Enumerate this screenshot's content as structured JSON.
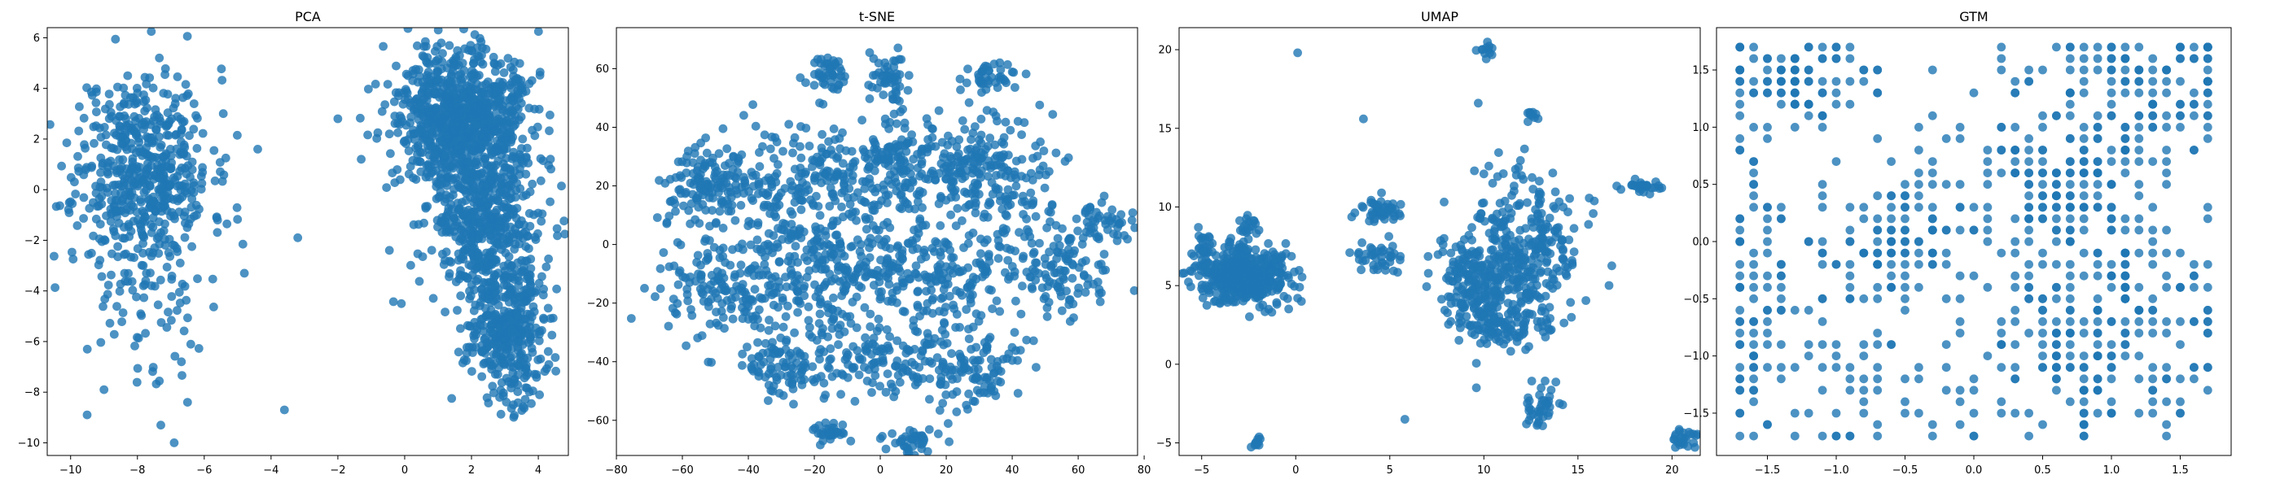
{
  "colors": {
    "marker": "#1f77b4",
    "background": "#ffffff",
    "axis": "#000000"
  },
  "chart_data": [
    {
      "type": "scatter",
      "title": "PCA",
      "xlim": [
        -10.7,
        4.9
      ],
      "ylim": [
        -10.5,
        6.4
      ],
      "xticks": [
        -10,
        -8,
        -6,
        -4,
        -2,
        0,
        2,
        4
      ],
      "yticks": [
        -10,
        -8,
        -6,
        -4,
        -2,
        0,
        2,
        4,
        6
      ],
      "clusters": [
        {
          "center": [
            -7.8,
            0.8
          ],
          "spread": [
            1.0,
            2.0
          ],
          "count": 550,
          "seed": 11
        },
        {
          "center": [
            -7.6,
            -4.5
          ],
          "spread": [
            1.3,
            2.0
          ],
          "count": 70,
          "seed": 12
        },
        {
          "center": [
            1.8,
            2.8
          ],
          "spread": [
            1.0,
            1.3
          ],
          "count": 900,
          "seed": 13
        },
        {
          "center": [
            2.4,
            -1.2
          ],
          "spread": [
            0.9,
            1.6
          ],
          "count": 500,
          "seed": 14
        },
        {
          "center": [
            3.1,
            -5.5
          ],
          "spread": [
            0.6,
            1.3
          ],
          "count": 380,
          "seed": 15
        }
      ],
      "points": [
        [
          -6.9,
          -10.0
        ],
        [
          -3.6,
          -8.7
        ],
        [
          -3.2,
          -1.9
        ],
        [
          -2.0,
          2.8
        ],
        [
          -1.3,
          1.2
        ],
        [
          0.1,
          4.5
        ],
        [
          -0.1,
          -4.5
        ],
        [
          -9.5,
          -6.3
        ],
        [
          -9.0,
          -7.9
        ],
        [
          -7.3,
          -9.3
        ],
        [
          -6.5,
          -8.4
        ],
        [
          -4.8,
          -3.3
        ],
        [
          -4.4,
          1.6
        ]
      ]
    },
    {
      "type": "scatter",
      "title": "t-SNE",
      "xlim": [
        -80,
        78
      ],
      "ylim": [
        -72,
        74
      ],
      "xticks": [
        -80,
        -60,
        -40,
        -20,
        0,
        20,
        40,
        60,
        80
      ],
      "yticks": [
        -60,
        -40,
        -20,
        0,
        20,
        40,
        60
      ],
      "clusters": [
        {
          "center": [
            -15,
            58
          ],
          "spread": [
            3,
            3
          ],
          "count": 45,
          "seed": 21
        },
        {
          "center": [
            2,
            57
          ],
          "spread": [
            3,
            4
          ],
          "count": 50,
          "seed": 22
        },
        {
          "center": [
            35,
            57
          ],
          "spread": [
            4,
            2
          ],
          "count": 40,
          "seed": 23
        },
        {
          "center": [
            -55,
            20
          ],
          "spread": [
            6,
            8
          ],
          "count": 120,
          "seed": 24
        },
        {
          "center": [
            -30,
            15
          ],
          "spread": [
            10,
            12
          ],
          "count": 200,
          "seed": 25
        },
        {
          "center": [
            0,
            25
          ],
          "spread": [
            10,
            10
          ],
          "count": 220,
          "seed": 26
        },
        {
          "center": [
            30,
            25
          ],
          "spread": [
            10,
            10
          ],
          "count": 220,
          "seed": 27
        },
        {
          "center": [
            -45,
            -15
          ],
          "spread": [
            10,
            8
          ],
          "count": 160,
          "seed": 28
        },
        {
          "center": [
            -15,
            -10
          ],
          "spread": [
            10,
            10
          ],
          "count": 180,
          "seed": 29
        },
        {
          "center": [
            20,
            -10
          ],
          "spread": [
            12,
            10
          ],
          "count": 200,
          "seed": 30
        },
        {
          "center": [
            55,
            -8
          ],
          "spread": [
            8,
            10
          ],
          "count": 120,
          "seed": 31
        },
        {
          "center": [
            -30,
            -40
          ],
          "spread": [
            8,
            6
          ],
          "count": 100,
          "seed": 32
        },
        {
          "center": [
            0,
            -40
          ],
          "spread": [
            10,
            6
          ],
          "count": 120,
          "seed": 33
        },
        {
          "center": [
            28,
            -42
          ],
          "spread": [
            8,
            8
          ],
          "count": 110,
          "seed": 34
        },
        {
          "center": [
            -15,
            -64
          ],
          "spread": [
            3,
            2
          ],
          "count": 35,
          "seed": 35
        },
        {
          "center": [
            10,
            -67
          ],
          "spread": [
            4,
            2
          ],
          "count": 40,
          "seed": 36
        },
        {
          "center": [
            68,
            7
          ],
          "spread": [
            4,
            3
          ],
          "count": 40,
          "seed": 37
        }
      ],
      "points": []
    },
    {
      "type": "scatter",
      "title": "UMAP",
      "xlim": [
        -6.2,
        21.5
      ],
      "ylim": [
        -5.8,
        21.4
      ],
      "xticks": [
        -5,
        0,
        5,
        10,
        15,
        20
      ],
      "yticks": [
        -5,
        0,
        5,
        10,
        15,
        20
      ],
      "clusters": [
        {
          "center": [
            -2.8,
            5.6
          ],
          "spread": [
            1.2,
            0.9
          ],
          "count": 500,
          "seed": 41
        },
        {
          "center": [
            -5.0,
            7.5
          ],
          "spread": [
            0.3,
            0.6
          ],
          "count": 25,
          "seed": 42
        },
        {
          "center": [
            -2.6,
            8.8
          ],
          "spread": [
            0.3,
            0.5
          ],
          "count": 20,
          "seed": 43
        },
        {
          "center": [
            4.5,
            9.7
          ],
          "spread": [
            0.6,
            0.5
          ],
          "count": 45,
          "seed": 44
        },
        {
          "center": [
            4.3,
            6.8
          ],
          "spread": [
            0.7,
            0.5
          ],
          "count": 40,
          "seed": 45
        },
        {
          "center": [
            9.5,
            5.0
          ],
          "spread": [
            1.0,
            1.5
          ],
          "count": 180,
          "seed": 46
        },
        {
          "center": [
            12.0,
            7.0
          ],
          "spread": [
            1.5,
            2.2
          ],
          "count": 320,
          "seed": 47
        },
        {
          "center": [
            11.5,
            2.5
          ],
          "spread": [
            1.2,
            0.6
          ],
          "count": 80,
          "seed": 48
        },
        {
          "center": [
            13.0,
            -2.8
          ],
          "spread": [
            0.5,
            0.7
          ],
          "count": 40,
          "seed": 49
        },
        {
          "center": [
            18.5,
            11.3
          ],
          "spread": [
            0.5,
            0.2
          ],
          "count": 30,
          "seed": 50
        },
        {
          "center": [
            20.6,
            -4.7
          ],
          "spread": [
            0.4,
            0.4
          ],
          "count": 25,
          "seed": 51
        },
        {
          "center": [
            10.1,
            20.0
          ],
          "spread": [
            0.2,
            0.3
          ],
          "count": 12,
          "seed": 52
        },
        {
          "center": [
            12.6,
            15.9
          ],
          "spread": [
            0.2,
            0.2
          ],
          "count": 10,
          "seed": 53
        },
        {
          "center": [
            -2.1,
            -4.9
          ],
          "spread": [
            0.15,
            0.2
          ],
          "count": 10,
          "seed": 54
        }
      ],
      "points": [
        [
          0.1,
          19.8
        ],
        [
          9.7,
          16.6
        ],
        [
          3.6,
          15.6
        ],
        [
          0.1,
          4.2
        ],
        [
          0.3,
          4.0
        ],
        [
          5.8,
          -3.5
        ],
        [
          9.6,
          -1.5
        ],
        [
          9.5,
          12.3
        ],
        [
          10.0,
          12.1
        ],
        [
          12.0,
          12.0
        ]
      ]
    },
    {
      "type": "scatter",
      "title": "GTM",
      "xlim": [
        -1.87,
        1.87
      ],
      "ylim": [
        -1.87,
        1.87
      ],
      "xticks": [
        -1.5,
        -1.0,
        -0.5,
        0.0,
        0.5,
        1.0,
        1.5
      ],
      "yticks": [
        -1.5,
        -1.0,
        -0.5,
        0.0,
        0.5,
        1.0,
        1.5
      ],
      "grid_lattice": {
        "range": [
          -1.7,
          1.7
        ],
        "step": 0.1
      },
      "clusters": [
        {
          "center": [
            -1.35,
            1.45
          ],
          "spread": [
            0.3,
            0.25
          ],
          "count": 90,
          "seed": 61
        },
        {
          "center": [
            1.3,
            1.4
          ],
          "spread": [
            0.35,
            0.3
          ],
          "count": 110,
          "seed": 62
        },
        {
          "center": [
            -0.6,
            0.0
          ],
          "spread": [
            0.3,
            0.3
          ],
          "count": 110,
          "seed": 63
        },
        {
          "center": [
            0.7,
            0.5
          ],
          "spread": [
            0.3,
            0.4
          ],
          "count": 120,
          "seed": 64
        },
        {
          "center": [
            1.1,
            -0.2
          ],
          "spread": [
            0.4,
            0.5
          ],
          "count": 100,
          "seed": 65
        },
        {
          "center": [
            0.9,
            -1.1
          ],
          "spread": [
            0.45,
            0.35
          ],
          "count": 140,
          "seed": 66
        },
        {
          "center": [
            -1.6,
            -0.4
          ],
          "spread": [
            0.1,
            0.7
          ],
          "count": 60,
          "seed": 67
        },
        {
          "center": [
            -1.2,
            -1.0
          ],
          "spread": [
            0.3,
            0.5
          ],
          "count": 50,
          "seed": 68
        },
        {
          "center": [
            -0.3,
            -1.2
          ],
          "spread": [
            0.5,
            0.35
          ],
          "count": 40,
          "seed": 69
        },
        {
          "center": [
            0.0,
            0.9
          ],
          "spread": [
            0.6,
            0.5
          ],
          "count": 60,
          "seed": 70
        }
      ],
      "points": []
    }
  ]
}
